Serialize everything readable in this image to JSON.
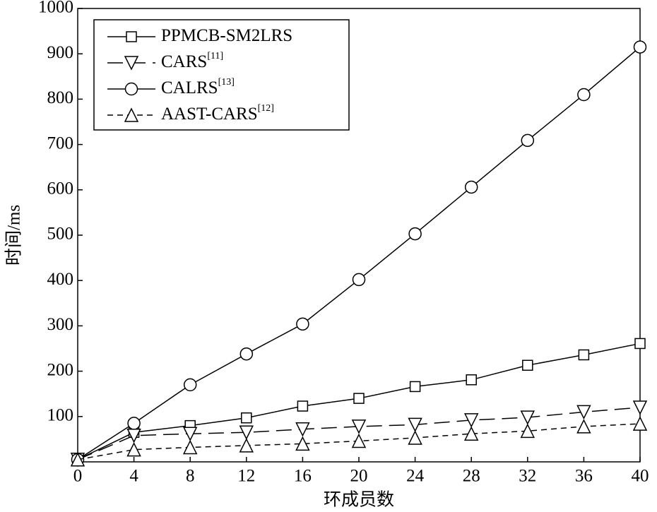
{
  "chart_data": {
    "type": "line",
    "x_label": "环成员数",
    "y_label": "时间/ms",
    "x": [
      0,
      4,
      8,
      12,
      16,
      20,
      24,
      28,
      32,
      36,
      40
    ],
    "xlim": [
      0,
      40
    ],
    "xticks": [
      0,
      4,
      8,
      12,
      16,
      20,
      24,
      28,
      32,
      36,
      40
    ],
    "ylim": [
      0,
      1000
    ],
    "yticks": [
      100,
      200,
      300,
      400,
      500,
      600,
      700,
      800,
      900,
      1000
    ],
    "legend": "upper left",
    "series": [
      {
        "name": "PPMCB-SM2LRS",
        "color": "#000000",
        "marker": "square",
        "dash": "solid",
        "values": [
          5,
          65,
          80,
          97,
          123,
          140,
          166,
          181,
          213,
          236,
          261
        ]
      },
      {
        "name": "CARS",
        "ref": "[11]",
        "color": "#000000",
        "marker": "triangle-down",
        "dash": "long",
        "values": [
          5,
          58,
          62,
          65,
          72,
          78,
          82,
          92,
          98,
          110,
          120
        ]
      },
      {
        "name": "CALRS",
        "ref": "[13]",
        "color": "#000000",
        "marker": "circle",
        "dash": "solid",
        "values": [
          5,
          85,
          170,
          238,
          304,
          402,
          503,
          606,
          709,
          810,
          915
        ]
      },
      {
        "name": "AAST-CARS",
        "ref": "[12]",
        "color": "#000000",
        "marker": "triangle-up",
        "dash": "short",
        "values": [
          5,
          27,
          32,
          36,
          40,
          46,
          53,
          62,
          68,
          78,
          84
        ]
      }
    ]
  }
}
